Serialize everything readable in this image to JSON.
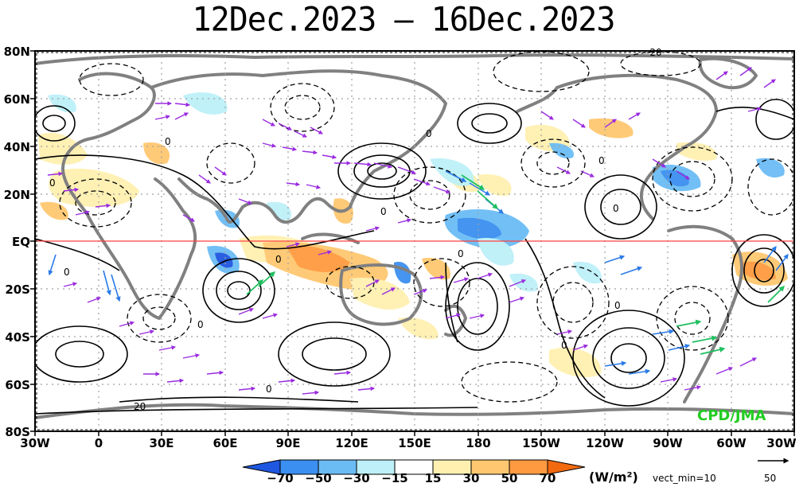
{
  "title": "12Dec.2023 – 16Dec.2023",
  "lat_labels": [
    "80N",
    "60N",
    "40N",
    "20N",
    "EQ",
    "20S",
    "40S",
    "60S",
    "80S"
  ],
  "lon_labels": [
    "30W",
    "0",
    "30E",
    "60E",
    "90E",
    "120E",
    "150E",
    "180",
    "150W",
    "120W",
    "90W",
    "60W",
    "30W"
  ],
  "credit": "CPD/JMA",
  "colorbar": {
    "ticks": [
      "−70",
      "−50",
      "−30",
      "−15",
      "15",
      "30",
      "50",
      "70"
    ],
    "colors": [
      "#1f57e0",
      "#3b8ff0",
      "#6bbcf5",
      "#bdf0f8",
      "#ffffff",
      "#fff0b0",
      "#ffc870",
      "#ff9a40",
      "#f26a10"
    ],
    "units": "(W/m²)"
  },
  "vect_min": "vect_min=10",
  "ref_vector_value": "50",
  "contour_labels": {
    "zero": "0",
    "twenty": "20",
    "neg_twenty": "-20"
  },
  "colors": {
    "equator": "#ff4040",
    "land": "#808080",
    "vector": "#9a2be0",
    "grid": "#a0a0a0"
  }
}
